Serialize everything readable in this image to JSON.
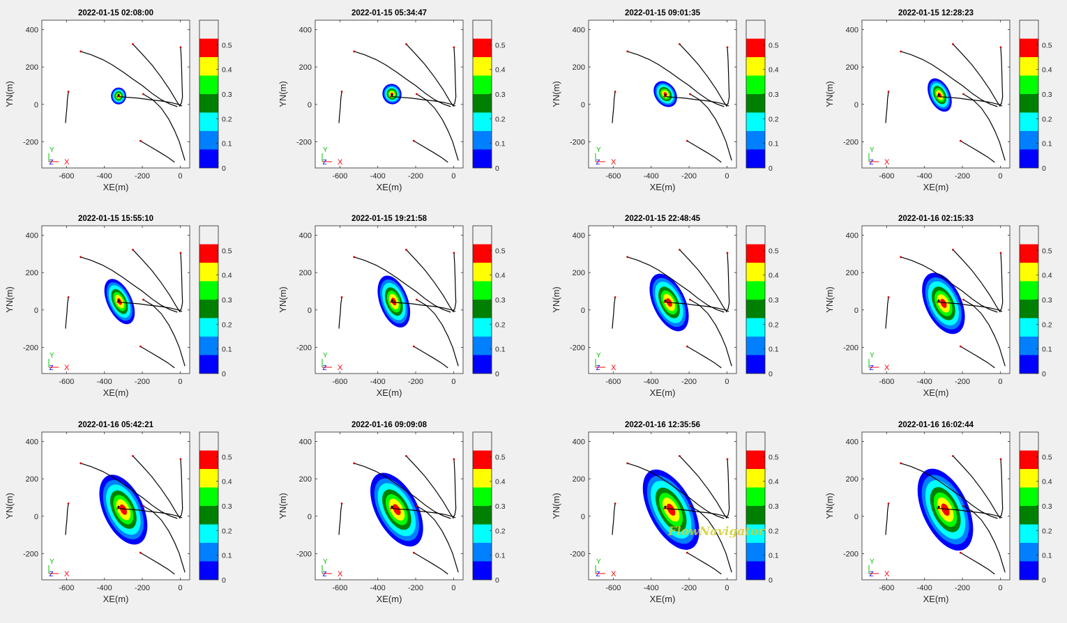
{
  "figure": {
    "background": "#f0f0f0"
  },
  "watermark": "FlowNavigator",
  "chart_data": {
    "type": "heatmap",
    "layout": {
      "rows": 3,
      "cols": 4
    },
    "xlabel": "XE(m)",
    "ylabel": "YN(m)",
    "xlim": [
      -730,
      50
    ],
    "ylim": [
      -340,
      450
    ],
    "xticks": [
      -600,
      -400,
      -200,
      0
    ],
    "yticks": [
      -200,
      0,
      200,
      400
    ],
    "colorbar": {
      "levels": [
        0,
        0.075,
        0.15,
        0.225,
        0.3,
        0.375,
        0.45,
        0.525,
        0.6
      ],
      "colors": [
        "#0000ff",
        "#0080ff",
        "#00ffff",
        "#008000",
        "#00ff00",
        "#ffff00",
        "#ff0000"
      ],
      "tick_values": [
        0,
        0.1,
        0.2,
        0.3,
        0.4,
        0.5
      ],
      "tick_labels": [
        "0",
        "0.1",
        "0.2",
        "0.3",
        "0.4",
        "0.5"
      ]
    },
    "axes_indicator": {
      "labels": {
        "y": "Y",
        "z": "Z",
        "x": "X"
      },
      "colors": {
        "y": "#00c000",
        "z": "#0000ff",
        "x": "#ff0000"
      }
    },
    "source": {
      "x": -325,
      "y": 50
    },
    "tracks": [
      {
        "points": [
          [
            -525,
            283
          ],
          [
            -470,
            265
          ],
          [
            -410,
            240
          ],
          [
            -360,
            212
          ],
          [
            -300,
            172
          ],
          [
            -250,
            135
          ],
          [
            -200,
            100
          ],
          [
            -150,
            60
          ],
          [
            -100,
            25
          ],
          [
            -55,
            2
          ],
          [
            -15,
            -12
          ]
        ]
      },
      {
        "points": [
          [
            -250,
            322
          ],
          [
            -200,
            268
          ],
          [
            -150,
            212
          ],
          [
            -100,
            145
          ],
          [
            -55,
            78
          ],
          [
            -20,
            18
          ],
          [
            0,
            -12
          ]
        ]
      },
      {
        "points": [
          [
            2,
            305
          ],
          [
            6,
            240
          ],
          [
            8,
            170
          ],
          [
            10,
            100
          ],
          [
            12,
            40
          ],
          [
            6,
            5
          ],
          [
            -5,
            -5
          ]
        ]
      },
      {
        "points": [
          [
            -590,
            68
          ],
          [
            -595,
            30
          ],
          [
            -598,
            -20
          ],
          [
            -602,
            -60
          ],
          [
            -605,
            -100
          ]
        ]
      },
      {
        "points": [
          [
            -330,
            42
          ],
          [
            -280,
            38
          ],
          [
            -220,
            33
          ],
          [
            -160,
            25
          ],
          [
            -100,
            18
          ],
          [
            -50,
            10
          ],
          [
            -10,
            0
          ],
          [
            10,
            -8
          ]
        ]
      },
      {
        "points": [
          [
            -195,
            55
          ],
          [
            -145,
            25
          ],
          [
            -100,
            -20
          ],
          [
            -60,
            -80
          ],
          [
            -30,
            -140
          ],
          [
            -5,
            -200
          ],
          [
            10,
            -250
          ],
          [
            25,
            -300
          ]
        ]
      },
      {
        "points": [
          [
            -210,
            -195
          ],
          [
            -160,
            -225
          ],
          [
            -110,
            -255
          ],
          [
            -65,
            -283
          ],
          [
            -30,
            -310
          ]
        ]
      }
    ],
    "panels": [
      {
        "title": "2022-01-15 02:08:00",
        "plume": {
          "cx": -325,
          "cy": 45,
          "a": 40,
          "b": 45,
          "theta": 0
        }
      },
      {
        "title": "2022-01-15 05:34:47",
        "plume": {
          "cx": -325,
          "cy": 55,
          "a": 50,
          "b": 55,
          "theta": 20
        }
      },
      {
        "title": "2022-01-15 09:01:35",
        "plume": {
          "cx": -325,
          "cy": 55,
          "a": 55,
          "b": 75,
          "theta": 35
        }
      },
      {
        "title": "2022-01-15 12:28:23",
        "plume": {
          "cx": -320,
          "cy": 50,
          "a": 55,
          "b": 95,
          "theta": 25
        }
      },
      {
        "title": "2022-01-15 15:55:10",
        "plume": {
          "cx": -320,
          "cy": 45,
          "a": 65,
          "b": 130,
          "theta": 25
        }
      },
      {
        "title": "2022-01-15 19:21:58",
        "plume": {
          "cx": -315,
          "cy": 45,
          "a": 75,
          "b": 145,
          "theta": 20
        }
      },
      {
        "title": "2022-01-15 22:48:45",
        "plume": {
          "cx": -305,
          "cy": 40,
          "a": 85,
          "b": 165,
          "theta": 25
        }
      },
      {
        "title": "2022-01-16 02:15:33",
        "plume": {
          "cx": -300,
          "cy": 35,
          "a": 95,
          "b": 175,
          "theta": 25
        }
      },
      {
        "title": "2022-01-16 05:42:21",
        "plume": {
          "cx": -300,
          "cy": 35,
          "a": 105,
          "b": 200,
          "theta": 25
        }
      },
      {
        "title": "2022-01-16 09:09:08",
        "plume": {
          "cx": -300,
          "cy": 35,
          "a": 110,
          "b": 215,
          "theta": 28
        }
      },
      {
        "title": "2022-01-16 12:35:56",
        "plume": {
          "cx": -295,
          "cy": 35,
          "a": 115,
          "b": 235,
          "theta": 28
        }
      },
      {
        "title": "2022-01-16 16:02:44",
        "plume": {
          "cx": -290,
          "cy": 35,
          "a": 120,
          "b": 235,
          "theta": 25
        }
      }
    ]
  }
}
